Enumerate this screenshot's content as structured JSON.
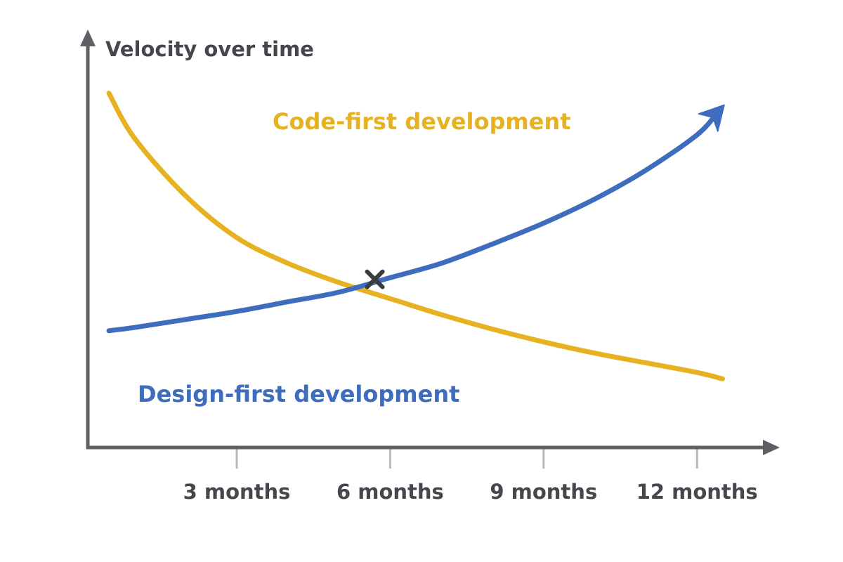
{
  "chart_data": {
    "type": "line",
    "title": "Velocity over time",
    "ylabel": "Velocity over time",
    "xlabel": "",
    "x_ticks": [
      {
        "value": 3,
        "label": "3 months"
      },
      {
        "value": 6,
        "label": "6 months"
      },
      {
        "value": 9,
        "label": "9 months"
      },
      {
        "value": 12,
        "label": "12 months"
      }
    ],
    "xlim": [
      0.5,
      13
    ],
    "ylim": [
      0,
      10
    ],
    "grid": false,
    "legend": "inline labels",
    "series": [
      {
        "name": "Code-first development",
        "color": "#E6B222",
        "x": [
          0.5,
          1,
          2,
          3,
          4,
          5,
          6,
          7,
          8,
          9,
          10,
          11,
          12,
          12.5
        ],
        "y": [
          9.9,
          8.5,
          6.7,
          5.4,
          4.6,
          4.0,
          3.5,
          3.0,
          2.55,
          2.15,
          1.8,
          1.5,
          1.2,
          1.0
        ]
      },
      {
        "name": "Design-first development",
        "color": "#3F6DBD",
        "x": [
          0.5,
          1,
          2,
          3,
          4,
          5,
          6,
          7,
          8,
          9,
          10,
          11,
          12,
          12.4
        ],
        "y": [
          2.5,
          2.6,
          2.85,
          3.1,
          3.4,
          3.7,
          4.15,
          4.6,
          5.2,
          5.85,
          6.6,
          7.5,
          8.6,
          9.3
        ]
      }
    ],
    "annotations": [
      {
        "type": "intersection-marker",
        "symbol": "x",
        "x": 5.7,
        "y": 4.1
      }
    ],
    "axis_color": "#5E6066",
    "tick_color": "#B8BABE",
    "text_color": "#45474D"
  }
}
